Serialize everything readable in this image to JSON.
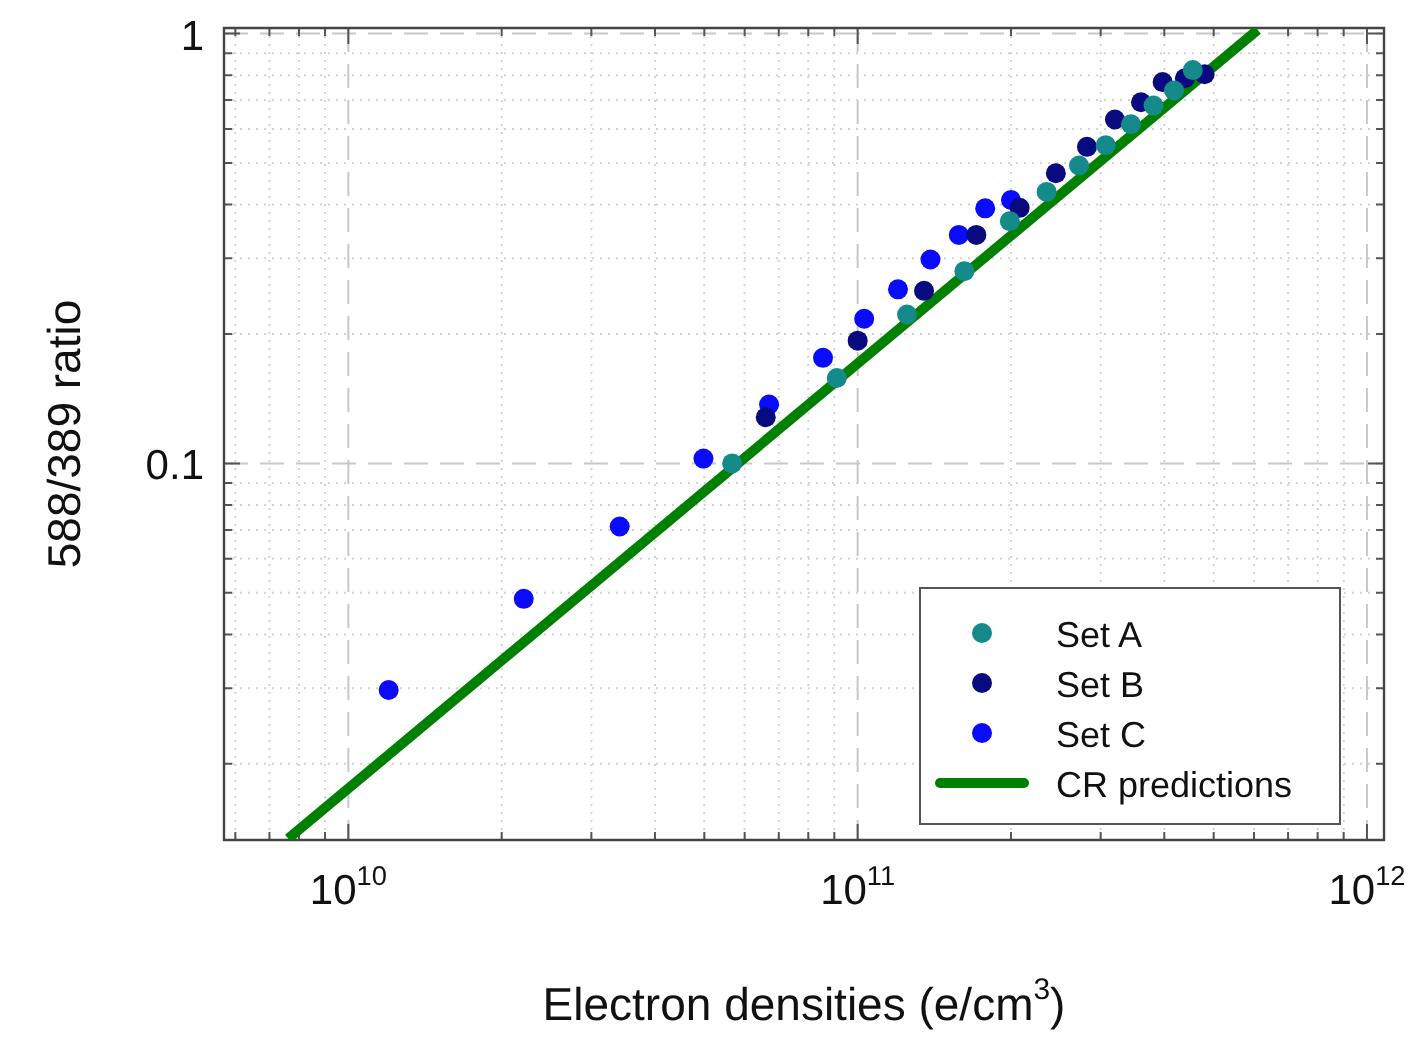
{
  "chart_data": {
    "type": "scatter",
    "xlabel": "Electron densities (e/cm$^{3}$)",
    "ylabel": "588/389 ratio",
    "xlim": [
      5700000000.0,
      1080000000000.0
    ],
    "ylim": [
      0.0133,
      1.03
    ],
    "xticks": [
      {
        "value": 6000000000.0,
        "label": null
      },
      {
        "value": 7000000000.0,
        "label": null
      },
      {
        "value": 8000000000.0,
        "label": null
      },
      {
        "value": 9000000000.0,
        "label": null
      },
      {
        "value": 10000000000.0,
        "label": "10$^{10}$"
      },
      {
        "value": 20000000000.0,
        "label": null
      },
      {
        "value": 30000000000.0,
        "label": null
      },
      {
        "value": 40000000000.0,
        "label": null
      },
      {
        "value": 50000000000.0,
        "label": null
      },
      {
        "value": 60000000000.0,
        "label": null
      },
      {
        "value": 70000000000.0,
        "label": null
      },
      {
        "value": 80000000000.0,
        "label": null
      },
      {
        "value": 90000000000.0,
        "label": null
      },
      {
        "value": 100000000000.0,
        "label": "10$^{11}$"
      },
      {
        "value": 200000000000.0,
        "label": null
      },
      {
        "value": 300000000000.0,
        "label": null
      },
      {
        "value": 400000000000.0,
        "label": null
      },
      {
        "value": 500000000000.0,
        "label": null
      },
      {
        "value": 600000000000.0,
        "label": null
      },
      {
        "value": 700000000000.0,
        "label": null
      },
      {
        "value": 800000000000.0,
        "label": null
      },
      {
        "value": 900000000000.0,
        "label": null
      },
      {
        "value": 1000000000000.0,
        "label": "10$^{12}$"
      }
    ],
    "yticks": [
      {
        "value": 0.02,
        "label": null
      },
      {
        "value": 0.03,
        "label": null
      },
      {
        "value": 0.04,
        "label": null
      },
      {
        "value": 0.05,
        "label": null
      },
      {
        "value": 0.06,
        "label": null
      },
      {
        "value": 0.07,
        "label": null
      },
      {
        "value": 0.08,
        "label": null
      },
      {
        "value": 0.09,
        "label": null
      },
      0.1,
      {
        "value": 0.2,
        "label": null
      },
      {
        "value": 0.3,
        "label": null
      },
      {
        "value": 0.4,
        "label": null
      },
      {
        "value": 0.5,
        "label": null
      },
      {
        "value": 0.6,
        "label": null
      },
      {
        "value": 0.7,
        "label": null
      },
      {
        "value": 0.8,
        "label": null
      },
      {
        "value": 0.9,
        "label": null
      },
      1
    ],
    "log": "xy",
    "grid": true,
    "legend": "bottom right",
    "marker": "circle",
    "series": [
      {
        "name": "Set A",
        "color": "#148a8a",
        "x": [
          56700000000.0,
          91000000000.0,
          125000000000.0,
          162000000000.0,
          199000000000.0,
          235000000000.0,
          272000000000.0,
          307000000000.0,
          344000000000.0,
          381000000000.0,
          418000000000.0,
          455000000000.0
        ],
        "values": [
          0.1,
          0.158,
          0.222,
          0.28,
          0.366,
          0.428,
          0.493,
          0.55,
          0.615,
          0.68,
          0.737,
          0.822
        ]
      },
      {
        "name": "Set B",
        "color": "#0a0a80",
        "x": [
          66000000000.0,
          100000000000.0,
          135000000000.0,
          171000000000.0,
          208000000000.0,
          245000000000.0,
          282000000000.0,
          320000000000.0,
          360000000000.0,
          397000000000.0,
          439000000000.0,
          480000000000.0
        ],
        "values": [
          0.128,
          0.193,
          0.252,
          0.34,
          0.393,
          0.473,
          0.545,
          0.631,
          0.692,
          0.771,
          0.787,
          0.804
        ]
      },
      {
        "name": "Set C",
        "color": "#0a0aff",
        "x": [
          12000000000.0,
          22100000000.0,
          34100000000.0,
          49800000000.0,
          67000000000.0,
          85500000000.0,
          103000000000.0,
          120000000000.0,
          139000000000.0,
          158000000000.0,
          178000000000.0,
          200000000000.0
        ],
        "values": [
          0.0297,
          0.0484,
          0.0713,
          0.1026,
          0.137,
          0.176,
          0.217,
          0.254,
          0.298,
          0.34,
          0.392,
          0.41
        ]
      },
      {
        "name": "CR predictions",
        "type": "line",
        "marker": "none",
        "color": "#008000",
        "x": [
          7620000000.0,
          610000000000.0
        ],
        "values": [
          0.0134,
          1.02
        ]
      }
    ]
  }
}
